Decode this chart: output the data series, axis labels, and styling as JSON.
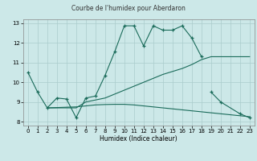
{
  "title": "Courbe de l'humidex pour Aberdaron",
  "xlabel": "Humidex (Indice chaleur)",
  "bg_color": "#cce8e8",
  "grid_color": "#aacccc",
  "line_color": "#1a6b5a",
  "xlim": [
    -0.5,
    23.5
  ],
  "ylim": [
    7.8,
    13.2
  ],
  "yticks": [
    8,
    9,
    10,
    11,
    12,
    13
  ],
  "xticks": [
    0,
    1,
    2,
    3,
    4,
    5,
    6,
    7,
    8,
    9,
    10,
    11,
    12,
    13,
    14,
    15,
    16,
    17,
    18,
    19,
    20,
    21,
    22,
    23
  ],
  "lines": [
    {
      "x": [
        0,
        1,
        2,
        3,
        4,
        5,
        6,
        7,
        8,
        9,
        10,
        11,
        12,
        13,
        14,
        15,
        16,
        17,
        18
      ],
      "y": [
        10.5,
        9.5,
        8.7,
        9.2,
        9.15,
        8.2,
        9.2,
        9.3,
        10.35,
        11.55,
        12.87,
        12.87,
        11.85,
        12.87,
        12.65,
        12.65,
        12.87,
        12.25,
        11.3
      ],
      "marker": true,
      "linestyle": "-"
    },
    {
      "x": [
        19,
        20,
        22,
        23
      ],
      "y": [
        9.5,
        9.0,
        8.4,
        8.2
      ],
      "marker": true,
      "linestyle": "-"
    },
    {
      "x": [
        2,
        5,
        6,
        7,
        8,
        9,
        10,
        11,
        12,
        13,
        14,
        15,
        16,
        17,
        18,
        19,
        20,
        21,
        22,
        23
      ],
      "y": [
        8.7,
        8.7,
        9.0,
        9.1,
        9.2,
        9.4,
        9.6,
        9.8,
        10.0,
        10.2,
        10.4,
        10.55,
        10.7,
        10.9,
        11.15,
        11.3,
        11.3,
        11.3,
        11.3,
        11.3
      ],
      "marker": false,
      "linestyle": "-"
    },
    {
      "x": [
        2,
        5,
        6,
        7,
        8,
        9,
        10,
        11,
        12,
        13,
        14,
        15,
        16,
        17,
        18,
        19,
        20,
        21,
        22,
        23
      ],
      "y": [
        8.7,
        8.75,
        8.8,
        8.85,
        8.87,
        8.88,
        8.88,
        8.85,
        8.8,
        8.75,
        8.7,
        8.65,
        8.6,
        8.55,
        8.5,
        8.45,
        8.4,
        8.35,
        8.3,
        8.25
      ],
      "marker": false,
      "linestyle": "-"
    }
  ]
}
